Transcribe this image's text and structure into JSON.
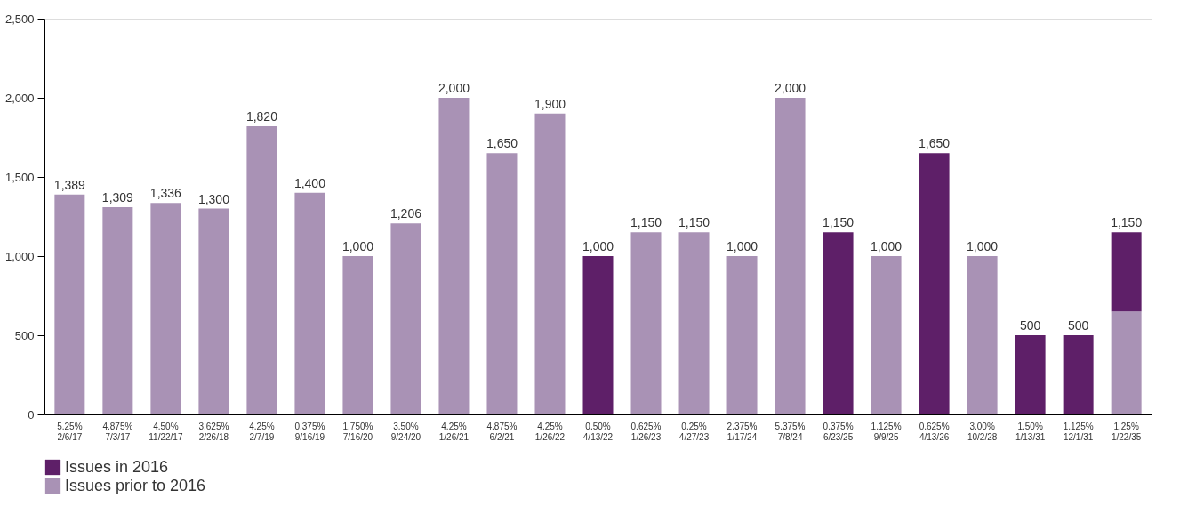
{
  "chart_data": {
    "type": "bar",
    "stacked": true,
    "categories": [
      "5.25%\n2/6/17",
      "4.875%\n7/3/17",
      "4.50%\n11/22/17",
      "3.625%\n2/26/18",
      "4.25%\n2/7/19",
      "0.375%\n9/16/19",
      "1.750%\n7/16/20",
      "3.50%\n9/24/20",
      "4.25%\n1/26/21",
      "4.875%\n6/2/21",
      "4.25%\n1/26/22",
      "0.50%\n4/13/22",
      "0.625%\n1/26/23",
      "0.25%\n4/27/23",
      "2.375%\n1/17/24",
      "5.375%\n7/8/24",
      "0.375%\n6/23/25",
      "1.125%\n9/9/25",
      "0.625%\n4/13/26",
      "3.00%\n10/2/28",
      "1.50%\n1/13/31",
      "1.125%\n12/1/31",
      "1.25%\n1/22/35"
    ],
    "series": [
      {
        "name": "Issues prior to 2016",
        "color": "#a992b5",
        "values": [
          1389,
          1309,
          1336,
          1300,
          1820,
          1400,
          1000,
          1206,
          2000,
          1650,
          1900,
          null,
          1150,
          1150,
          1000,
          2000,
          null,
          1000,
          null,
          1000,
          null,
          null,
          650
        ]
      },
      {
        "name": "Issues in 2016",
        "color": "#5e1f68",
        "values": [
          null,
          null,
          null,
          null,
          null,
          null,
          null,
          null,
          null,
          null,
          null,
          1000,
          null,
          null,
          null,
          null,
          1150,
          null,
          1650,
          null,
          500,
          500,
          500
        ]
      }
    ],
    "totals": [
      "1,389",
      "1,309",
      "1,336",
      "1,300",
      "1,820",
      "1,400",
      "1,000",
      "1,206",
      "2,000",
      "1,650",
      "1,900",
      "1,000",
      "1,150",
      "1,150",
      "1,000",
      "2,000",
      "1,150",
      "1,000",
      "1,650",
      "1,000",
      "500",
      "500",
      "1,150"
    ],
    "ylim": [
      0,
      2500
    ],
    "yticks": [
      {
        "value": 0,
        "label": "0"
      },
      {
        "value": 500,
        "label": "500"
      },
      {
        "value": 1000,
        "label": "1,000"
      },
      {
        "value": 1500,
        "label": "1,500"
      },
      {
        "value": 2000,
        "label": "2,000"
      },
      {
        "value": 2500,
        "label": "2,500"
      }
    ],
    "grid": false,
    "legend": "bottom"
  }
}
